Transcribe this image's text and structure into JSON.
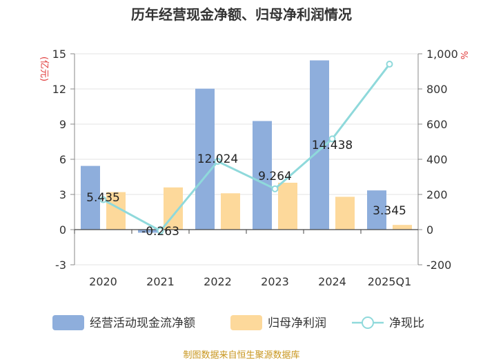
{
  "chart_data": {
    "type": "bar",
    "title": "历年经营现金净额、归母净利润情况",
    "categories": [
      "2020",
      "2021",
      "2022",
      "2023",
      "2024",
      "2025Q1"
    ],
    "series": [
      {
        "name": "经营活动现金流净额",
        "type": "bar",
        "axis": "left",
        "color": "#8eaedc",
        "values": [
          5.435,
          -0.263,
          12.024,
          9.264,
          14.438,
          3.345
        ],
        "labels": [
          "5.435",
          "-0.263",
          "12.024",
          "9.264",
          "14.438",
          "3.345"
        ]
      },
      {
        "name": "归母净利润",
        "type": "bar",
        "axis": "left",
        "color": "#fdd99b",
        "values": [
          3.2,
          3.6,
          3.1,
          4.0,
          2.8,
          0.4
        ]
      },
      {
        "name": "净现比",
        "type": "line",
        "axis": "right",
        "color": "#8fd9db",
        "values": [
          170,
          -7,
          388,
          232,
          516,
          941
        ]
      }
    ],
    "y_left": {
      "unit": "(亿元)",
      "min": -3,
      "max": 15,
      "ticks": [
        -3,
        0,
        3,
        6,
        9,
        12,
        15
      ],
      "tick_labels": [
        "-3",
        "0",
        "3",
        "6",
        "9",
        "12",
        "15"
      ]
    },
    "y_right": {
      "unit": "%",
      "min": -200,
      "max": 1000,
      "ticks": [
        -200,
        0,
        200,
        400,
        600,
        800,
        1000
      ],
      "tick_labels": [
        "-200",
        "0",
        "200",
        "400",
        "600",
        "800",
        "1,000"
      ]
    },
    "legend_position": "bottom"
  },
  "source": "制图数据来自恒生聚源数据库"
}
